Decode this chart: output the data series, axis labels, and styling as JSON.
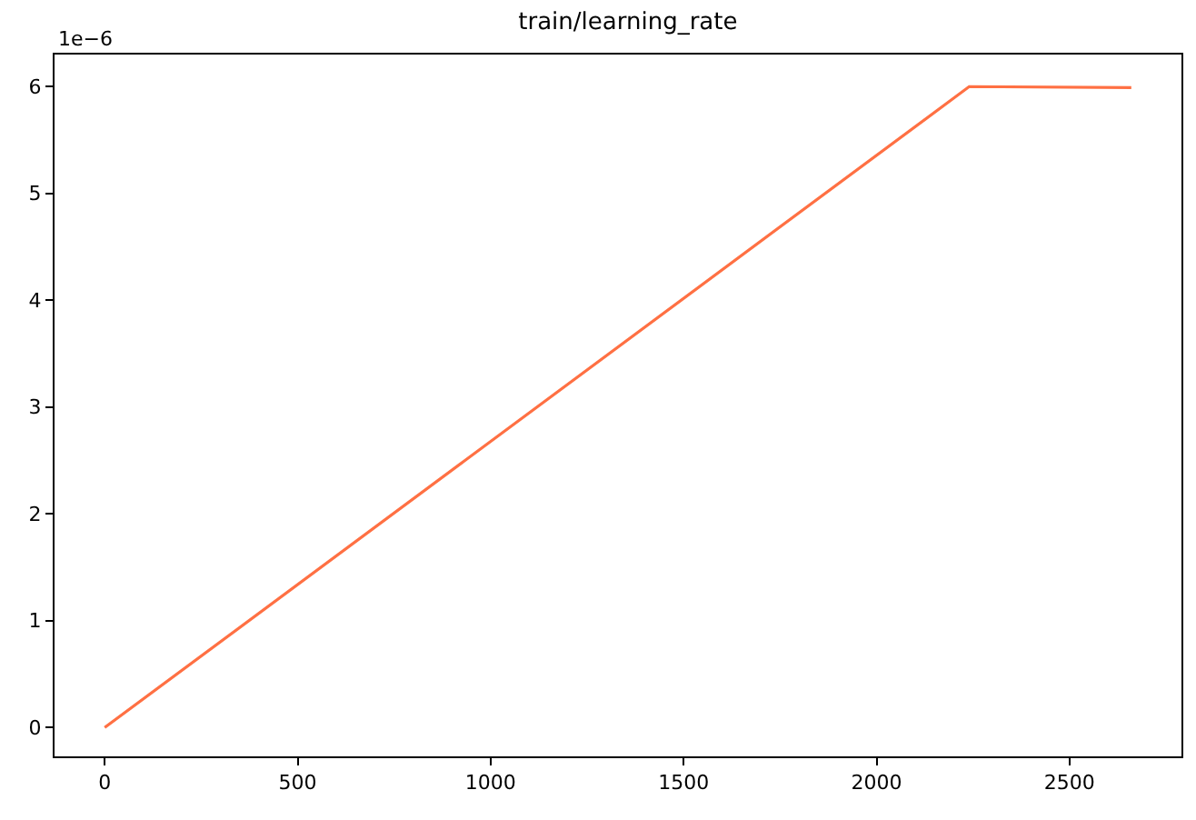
{
  "chart_data": {
    "type": "line",
    "title": "train/learning_rate",
    "series": [
      {
        "color": "#ff7043",
        "x": [
          0,
          2240,
          2660
        ],
        "values": [
          0,
          6.0,
          5.99
        ]
      }
    ],
    "xlim": [
      -130,
      2790
    ],
    "xticks": [
      0,
      500,
      1000,
      1500,
      2000,
      2500
    ],
    "ylim": [
      -0.27,
      6.3
    ],
    "yticks": [
      0,
      1,
      2,
      3,
      4,
      5,
      6
    ],
    "annotations": [
      "1e−6"
    ],
    "grid": false,
    "marker": "none",
    "line_style": "solid"
  }
}
